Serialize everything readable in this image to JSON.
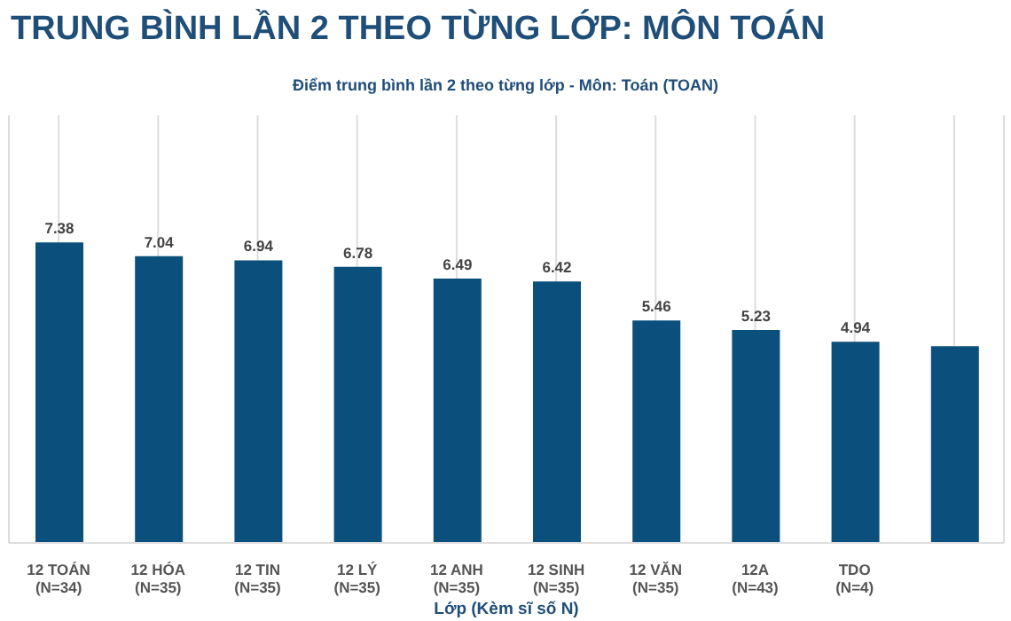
{
  "chart_data": {
    "type": "bar",
    "title": "TRUNG BÌNH LẦN 2 THEO TỪNG LỚP: MÔN TOÁN",
    "subtitle": "Điểm trung bình lần 2 theo từng lớp - Môn: Toán (TOAN)",
    "xlabel": "Lớp (Kèm sĩ số N)",
    "categories": [
      "12 TOÁN\n(N=34)",
      "12 HÓA\n(N=35)",
      "12 TIN\n(N=35)",
      "12 LÝ\n(N=35)",
      "12 ANH\n(N=35)",
      "12 SINH\n(N=35)",
      "12 VĂN\n(N=35)",
      "12A\n(N=43)",
      "TDO\n(N=4)",
      null
    ],
    "values": [
      7.38,
      7.04,
      6.94,
      6.78,
      6.49,
      6.42,
      5.46,
      5.23,
      4.94,
      4.83
    ],
    "value_labels": [
      "7.38",
      "7.04",
      "6.94",
      "6.78",
      "6.49",
      "6.42",
      "5.46",
      "5.23",
      "4.94",
      null
    ],
    "color": "#0b4f7c",
    "ylim": [
      0,
      10.5
    ],
    "grid": "x",
    "tick_labels": "x"
  }
}
